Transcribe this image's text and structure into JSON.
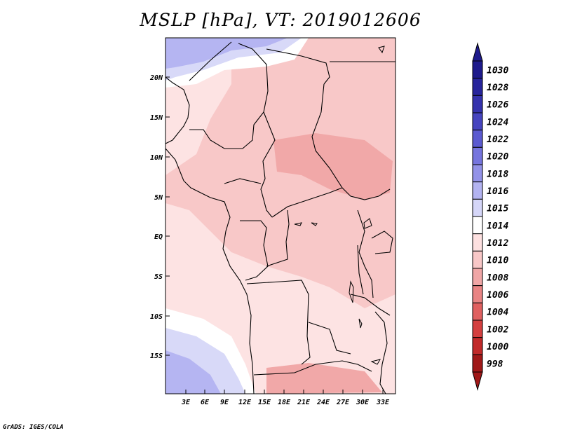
{
  "title": "MSLP [hPa], VT: 2019012606",
  "credit": "GrADS: IGES/COLA",
  "lat_labels": [
    "20N",
    "15N",
    "10N",
    "5N",
    "EQ",
    "5S",
    "10S",
    "15S"
  ],
  "lon_labels": [
    "3E",
    "6E",
    "9E",
    "12E",
    "15E",
    "18E",
    "21E",
    "24E",
    "27E",
    "30E",
    "33E"
  ],
  "colorbar": {
    "levels": [
      {
        "label": "1030",
        "color": "#1e1a8c"
      },
      {
        "label": "1028",
        "color": "#27249c"
      },
      {
        "label": "1026",
        "color": "#3532ad"
      },
      {
        "label": "1024",
        "color": "#4644bf"
      },
      {
        "label": "1022",
        "color": "#5b5ad0"
      },
      {
        "label": "1020",
        "color": "#7675de"
      },
      {
        "label": "1018",
        "color": "#9392e8"
      },
      {
        "label": "1016",
        "color": "#b3b3f1"
      },
      {
        "label": "1015",
        "color": "#d5d6f8"
      },
      {
        "label": "1014",
        "color": "#ffffff"
      },
      {
        "label": "1012",
        "color": "#fde0e0"
      },
      {
        "label": "1010",
        "color": "#f8c7c7"
      },
      {
        "label": "1008",
        "color": "#f0a6a6"
      },
      {
        "label": "1006",
        "color": "#e98484"
      },
      {
        "label": "1004",
        "color": "#e06060"
      },
      {
        "label": "1002",
        "color": "#d43f3f"
      },
      {
        "label": "1000",
        "color": "#c12a2a"
      },
      {
        "label": "998",
        "color": "#a01818"
      }
    ],
    "top_color": "#1e1a8c",
    "bottom_color": "#a01818"
  },
  "map": {
    "fill_colors": {
      "lightest_red": "#fde3e3",
      "light_red": "#f8c8c8",
      "mid_red": "#f1a8a8",
      "white": "#ffffff",
      "pale_blue": "#d8d9f8",
      "light_blue": "#b5b5f2"
    }
  }
}
